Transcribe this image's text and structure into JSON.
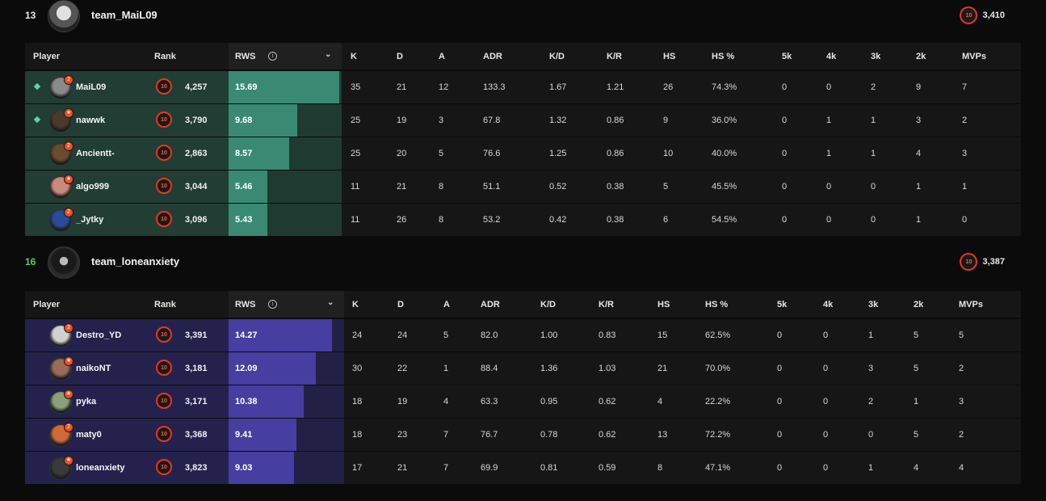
{
  "colors": {
    "team1_left": "#223d33",
    "team1_track": "#1f3a31",
    "team1_fill": "#3a8a73",
    "team2_left": "#24224c",
    "team2_track": "#222145",
    "team2_fill": "#463ea0",
    "score_win": "#4fd06a",
    "level": "#e8361e"
  },
  "columns": [
    "Player",
    "Rank",
    "RWS",
    "K",
    "D",
    "A",
    "ADR",
    "K/D",
    "K/R",
    "HS",
    "HS %",
    "5k",
    "4k",
    "3k",
    "2k",
    "MVPs"
  ],
  "rws_max": 16,
  "teams": [
    {
      "score": "13",
      "name": "team_MaiL09",
      "elo": "3,410",
      "level": "10",
      "players": [
        {
          "name": "MaiL09",
          "party": true,
          "badge": "2",
          "level": "10",
          "elo": "4,257",
          "rws": 15.69,
          "rws_text": "15.69",
          "k": "35",
          "d": "21",
          "a": "12",
          "adr": "133.3",
          "kd": "1.67",
          "kr": "1.21",
          "hs": "26",
          "hsp": "74.3%",
          "k5": "0",
          "k4": "0",
          "k3": "2",
          "k2": "9",
          "mvps": "7",
          "avatar": "#8a8a8a"
        },
        {
          "name": "nawwk",
          "party": true,
          "badge": "★",
          "level": "10",
          "elo": "3,790",
          "rws": 9.68,
          "rws_text": "9.68",
          "k": "25",
          "d": "19",
          "a": "3",
          "adr": "67.8",
          "kd": "1.32",
          "kr": "0.86",
          "hs": "9",
          "hsp": "36.0%",
          "k5": "0",
          "k4": "1",
          "k3": "1",
          "k2": "3",
          "mvps": "2",
          "avatar": "#4a3a2a"
        },
        {
          "name": "Ancientt-",
          "party": false,
          "badge": "2",
          "level": "10",
          "elo": "2,863",
          "rws": 8.57,
          "rws_text": "8.57",
          "k": "25",
          "d": "20",
          "a": "5",
          "adr": "76.6",
          "kd": "1.25",
          "kr": "0.86",
          "hs": "10",
          "hsp": "40.0%",
          "k5": "0",
          "k4": "1",
          "k3": "1",
          "k2": "4",
          "mvps": "3",
          "avatar": "#6a4a30"
        },
        {
          "name": "algo999",
          "party": false,
          "badge": "★",
          "level": "10",
          "elo": "3,044",
          "rws": 5.46,
          "rws_text": "5.46",
          "k": "11",
          "d": "21",
          "a": "8",
          "adr": "51.1",
          "kd": "0.52",
          "kr": "0.38",
          "hs": "5",
          "hsp": "45.5%",
          "k5": "0",
          "k4": "0",
          "k3": "0",
          "k2": "1",
          "mvps": "1",
          "avatar": "#c88a7a"
        },
        {
          "name": "_Jytky",
          "party": false,
          "badge": "2",
          "level": "10",
          "elo": "3,096",
          "rws": 5.43,
          "rws_text": "5.43",
          "k": "11",
          "d": "26",
          "a": "8",
          "adr": "53.2",
          "kd": "0.42",
          "kr": "0.38",
          "hs": "6",
          "hsp": "54.5%",
          "k5": "0",
          "k4": "0",
          "k3": "0",
          "k2": "1",
          "mvps": "0",
          "avatar": "#2a4a9a"
        }
      ]
    },
    {
      "score": "16",
      "name": "team_loneanxiety",
      "elo": "3,387",
      "level": "10",
      "players": [
        {
          "name": "Destro_YD",
          "party": false,
          "badge": "2",
          "level": "10",
          "elo": "3,391",
          "rws": 14.27,
          "rws_text": "14.27",
          "k": "24",
          "d": "24",
          "a": "5",
          "adr": "82.0",
          "kd": "1.00",
          "kr": "0.83",
          "hs": "15",
          "hsp": "62.5%",
          "k5": "0",
          "k4": "0",
          "k3": "1",
          "k2": "5",
          "mvps": "5",
          "avatar": "#d0d0d0"
        },
        {
          "name": "naikoNT",
          "party": false,
          "badge": "★",
          "level": "10",
          "elo": "3,181",
          "rws": 12.09,
          "rws_text": "12.09",
          "k": "30",
          "d": "22",
          "a": "1",
          "adr": "88.4",
          "kd": "1.36",
          "kr": "1.03",
          "hs": "21",
          "hsp": "70.0%",
          "k5": "0",
          "k4": "0",
          "k3": "3",
          "k2": "5",
          "mvps": "2",
          "avatar": "#9a6a5a"
        },
        {
          "name": "pyka",
          "party": false,
          "badge": "★",
          "level": "10",
          "elo": "3,171",
          "rws": 10.38,
          "rws_text": "10.38",
          "k": "18",
          "d": "19",
          "a": "4",
          "adr": "63.3",
          "kd": "0.95",
          "kr": "0.62",
          "hs": "4",
          "hsp": "22.2%",
          "k5": "0",
          "k4": "0",
          "k3": "2",
          "k2": "1",
          "mvps": "3",
          "avatar": "#8aa07a"
        },
        {
          "name": "maty0",
          "party": false,
          "badge": "2",
          "level": "10",
          "elo": "3,368",
          "rws": 9.41,
          "rws_text": "9.41",
          "k": "18",
          "d": "23",
          "a": "7",
          "adr": "76.7",
          "kd": "0.78",
          "kr": "0.62",
          "hs": "13",
          "hsp": "72.2%",
          "k5": "0",
          "k4": "0",
          "k3": "0",
          "k2": "5",
          "mvps": "2",
          "avatar": "#d06a3a"
        },
        {
          "name": "loneanxiety",
          "party": false,
          "badge": "★",
          "level": "10",
          "elo": "3,823",
          "rws": 9.03,
          "rws_text": "9.03",
          "k": "17",
          "d": "21",
          "a": "7",
          "adr": "69.9",
          "kd": "0.81",
          "kr": "0.59",
          "hs": "8",
          "hsp": "47.1%",
          "k5": "0",
          "k4": "0",
          "k3": "1",
          "k2": "4",
          "mvps": "4",
          "avatar": "#3a3a3a"
        }
      ]
    }
  ]
}
